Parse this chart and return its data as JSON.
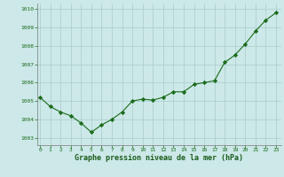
{
  "x": [
    0,
    1,
    2,
    3,
    4,
    5,
    6,
    7,
    8,
    9,
    10,
    11,
    12,
    13,
    14,
    15,
    16,
    17,
    18,
    19,
    20,
    21,
    22,
    23
  ],
  "y": [
    1005.2,
    1004.7,
    1004.4,
    1004.2,
    1003.8,
    1003.3,
    1003.7,
    1004.0,
    1004.4,
    1005.0,
    1005.1,
    1005.05,
    1005.2,
    1005.5,
    1005.5,
    1005.9,
    1006.0,
    1006.1,
    1007.1,
    1007.5,
    1008.1,
    1008.8,
    1009.4,
    1009.8
  ],
  "line_color": "#1a6b1a",
  "marker_color": "#1a6b1a",
  "bg_color": "#cce8e8",
  "grid_color": "#aacccc",
  "xlabel": "Graphe pression niveau de la mer (hPa)",
  "xlabel_color": "#1a5c1a",
  "ytick_labels": [
    "1003",
    "1004",
    "1005",
    "1006",
    "1007",
    "1008",
    "1009",
    "1010"
  ],
  "yticks": [
    1003,
    1004,
    1005,
    1006,
    1007,
    1008,
    1009,
    1010
  ],
  "xticks": [
    0,
    1,
    2,
    3,
    4,
    5,
    6,
    7,
    8,
    9,
    10,
    11,
    12,
    13,
    14,
    15,
    16,
    17,
    18,
    19,
    20,
    21,
    22,
    23
  ],
  "ylim": [
    1002.6,
    1010.3
  ],
  "xlim": [
    -0.3,
    23.5
  ],
  "tick_color": "#1a6b1a"
}
